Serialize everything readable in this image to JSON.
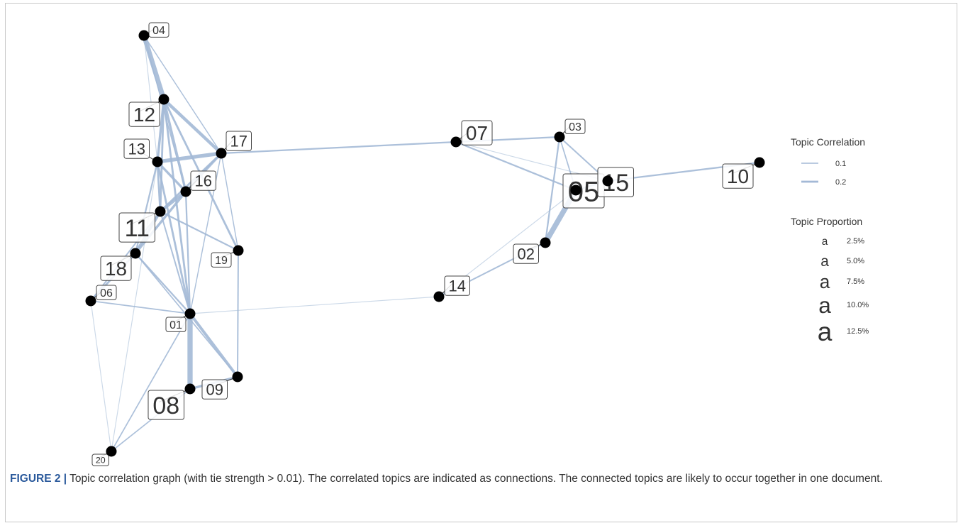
{
  "nodes": [
    {
      "id": "04",
      "proportion": 2.5
    },
    {
      "id": "12",
      "proportion": 7.5
    },
    {
      "id": "13",
      "proportion": 5.0
    },
    {
      "id": "17",
      "proportion": 5.0
    },
    {
      "id": "16",
      "proportion": 5.0
    },
    {
      "id": "11",
      "proportion": 10.0
    },
    {
      "id": "18",
      "proportion": 7.5
    },
    {
      "id": "19",
      "proportion": 2.5
    },
    {
      "id": "06",
      "proportion": 2.5
    },
    {
      "id": "01",
      "proportion": 2.5
    },
    {
      "id": "09",
      "proportion": 5.0
    },
    {
      "id": "08",
      "proportion": 10.0
    },
    {
      "id": "20",
      "proportion": 1.0
    },
    {
      "id": "07",
      "proportion": 7.5
    },
    {
      "id": "03",
      "proportion": 2.5
    },
    {
      "id": "05",
      "proportion": 12.5
    },
    {
      "id": "15",
      "proportion": 10.0
    },
    {
      "id": "10",
      "proportion": 7.5
    },
    {
      "id": "02",
      "proportion": 5.0
    },
    {
      "id": "14",
      "proportion": 5.0
    }
  ],
  "edges": [
    {
      "s": "04",
      "t": "12",
      "w": 0.22
    },
    {
      "s": "04",
      "t": "17",
      "w": 0.03
    },
    {
      "s": "04",
      "t": "13",
      "w": 0.02
    },
    {
      "s": "04",
      "t": "16",
      "w": 0.03
    },
    {
      "s": "12",
      "t": "13",
      "w": 0.1
    },
    {
      "s": "12",
      "t": "17",
      "w": 0.14
    },
    {
      "s": "12",
      "t": "16",
      "w": 0.1
    },
    {
      "s": "12",
      "t": "11",
      "w": 0.08
    },
    {
      "s": "12",
      "t": "01",
      "w": 0.08
    },
    {
      "s": "12",
      "t": "19",
      "w": 0.08
    },
    {
      "s": "13",
      "t": "17",
      "w": 0.17
    },
    {
      "s": "13",
      "t": "16",
      "w": 0.1
    },
    {
      "s": "13",
      "t": "11",
      "w": 0.08
    },
    {
      "s": "13",
      "t": "01",
      "w": 0.08
    },
    {
      "s": "13",
      "t": "18",
      "w": 0.06
    },
    {
      "s": "17",
      "t": "16",
      "w": 0.1
    },
    {
      "s": "17",
      "t": "11",
      "w": 0.08
    },
    {
      "s": "17",
      "t": "19",
      "w": 0.03
    },
    {
      "s": "17",
      "t": "07",
      "w": 0.06
    },
    {
      "s": "17",
      "t": "01",
      "w": 0.03
    },
    {
      "s": "16",
      "t": "11",
      "w": 0.12
    },
    {
      "s": "16",
      "t": "18",
      "w": 0.1
    },
    {
      "s": "16",
      "t": "01",
      "w": 0.06
    },
    {
      "s": "11",
      "t": "18",
      "w": 0.12
    },
    {
      "s": "11",
      "t": "19",
      "w": 0.06
    },
    {
      "s": "11",
      "t": "01",
      "w": 0.05
    },
    {
      "s": "11",
      "t": "06",
      "w": 0.05
    },
    {
      "s": "18",
      "t": "06",
      "w": 0.08
    },
    {
      "s": "18",
      "t": "01",
      "w": 0.06
    },
    {
      "s": "18",
      "t": "09",
      "w": 0.04
    },
    {
      "s": "06",
      "t": "01",
      "w": 0.04
    },
    {
      "s": "06",
      "t": "20",
      "w": 0.02
    },
    {
      "s": "01",
      "t": "08",
      "w": 0.24
    },
    {
      "s": "01",
      "t": "09",
      "w": 0.12
    },
    {
      "s": "01",
      "t": "14",
      "w": 0.02
    },
    {
      "s": "01",
      "t": "20",
      "w": 0.04
    },
    {
      "s": "08",
      "t": "09",
      "w": 0.1
    },
    {
      "s": "08",
      "t": "20",
      "w": 0.04
    },
    {
      "s": "19",
      "t": "09",
      "w": 0.05
    },
    {
      "s": "13",
      "t": "20",
      "w": 0.02
    },
    {
      "s": "07",
      "t": "03",
      "w": 0.06
    },
    {
      "s": "07",
      "t": "05",
      "w": 0.06
    },
    {
      "s": "07",
      "t": "15",
      "w": 0.02
    },
    {
      "s": "03",
      "t": "15",
      "w": 0.05
    },
    {
      "s": "03",
      "t": "05",
      "w": 0.04
    },
    {
      "s": "03",
      "t": "02",
      "w": 0.06
    },
    {
      "s": "05",
      "t": "02",
      "w": 0.24
    },
    {
      "s": "05",
      "t": "14",
      "w": 0.02
    },
    {
      "s": "15",
      "t": "10",
      "w": 0.06
    },
    {
      "s": "02",
      "t": "14",
      "w": 0.05
    },
    {
      "s": "15",
      "t": "05",
      "w": 0.06
    }
  ],
  "legend": {
    "correlation_title": "Topic Correlation",
    "correlation_items": [
      {
        "label": "0.1",
        "w": 0.1
      },
      {
        "label": "0.2",
        "w": 0.2
      }
    ],
    "proportion_title": "Topic Proportion",
    "proportion_glyph": "a",
    "proportion_items": [
      {
        "label": "2.5%",
        "p": 2.5
      },
      {
        "label": "5.0%",
        "p": 5.0
      },
      {
        "label": "7.5%",
        "p": 7.5
      },
      {
        "label": "10.0%",
        "p": 10.0
      },
      {
        "label": "12.5%",
        "p": 12.5
      }
    ]
  },
  "colors": {
    "edge": "#a3b9d6",
    "node": "#000000",
    "label_border": "#444444",
    "label_text": "#333333"
  },
  "caption": {
    "label": "FIGURE 2",
    "separator": "|",
    "text": "Topic correlation graph (with tie strength > 0.01). The correlated topics are indicated as connections. The connected topics are likely to occur together in one document."
  }
}
